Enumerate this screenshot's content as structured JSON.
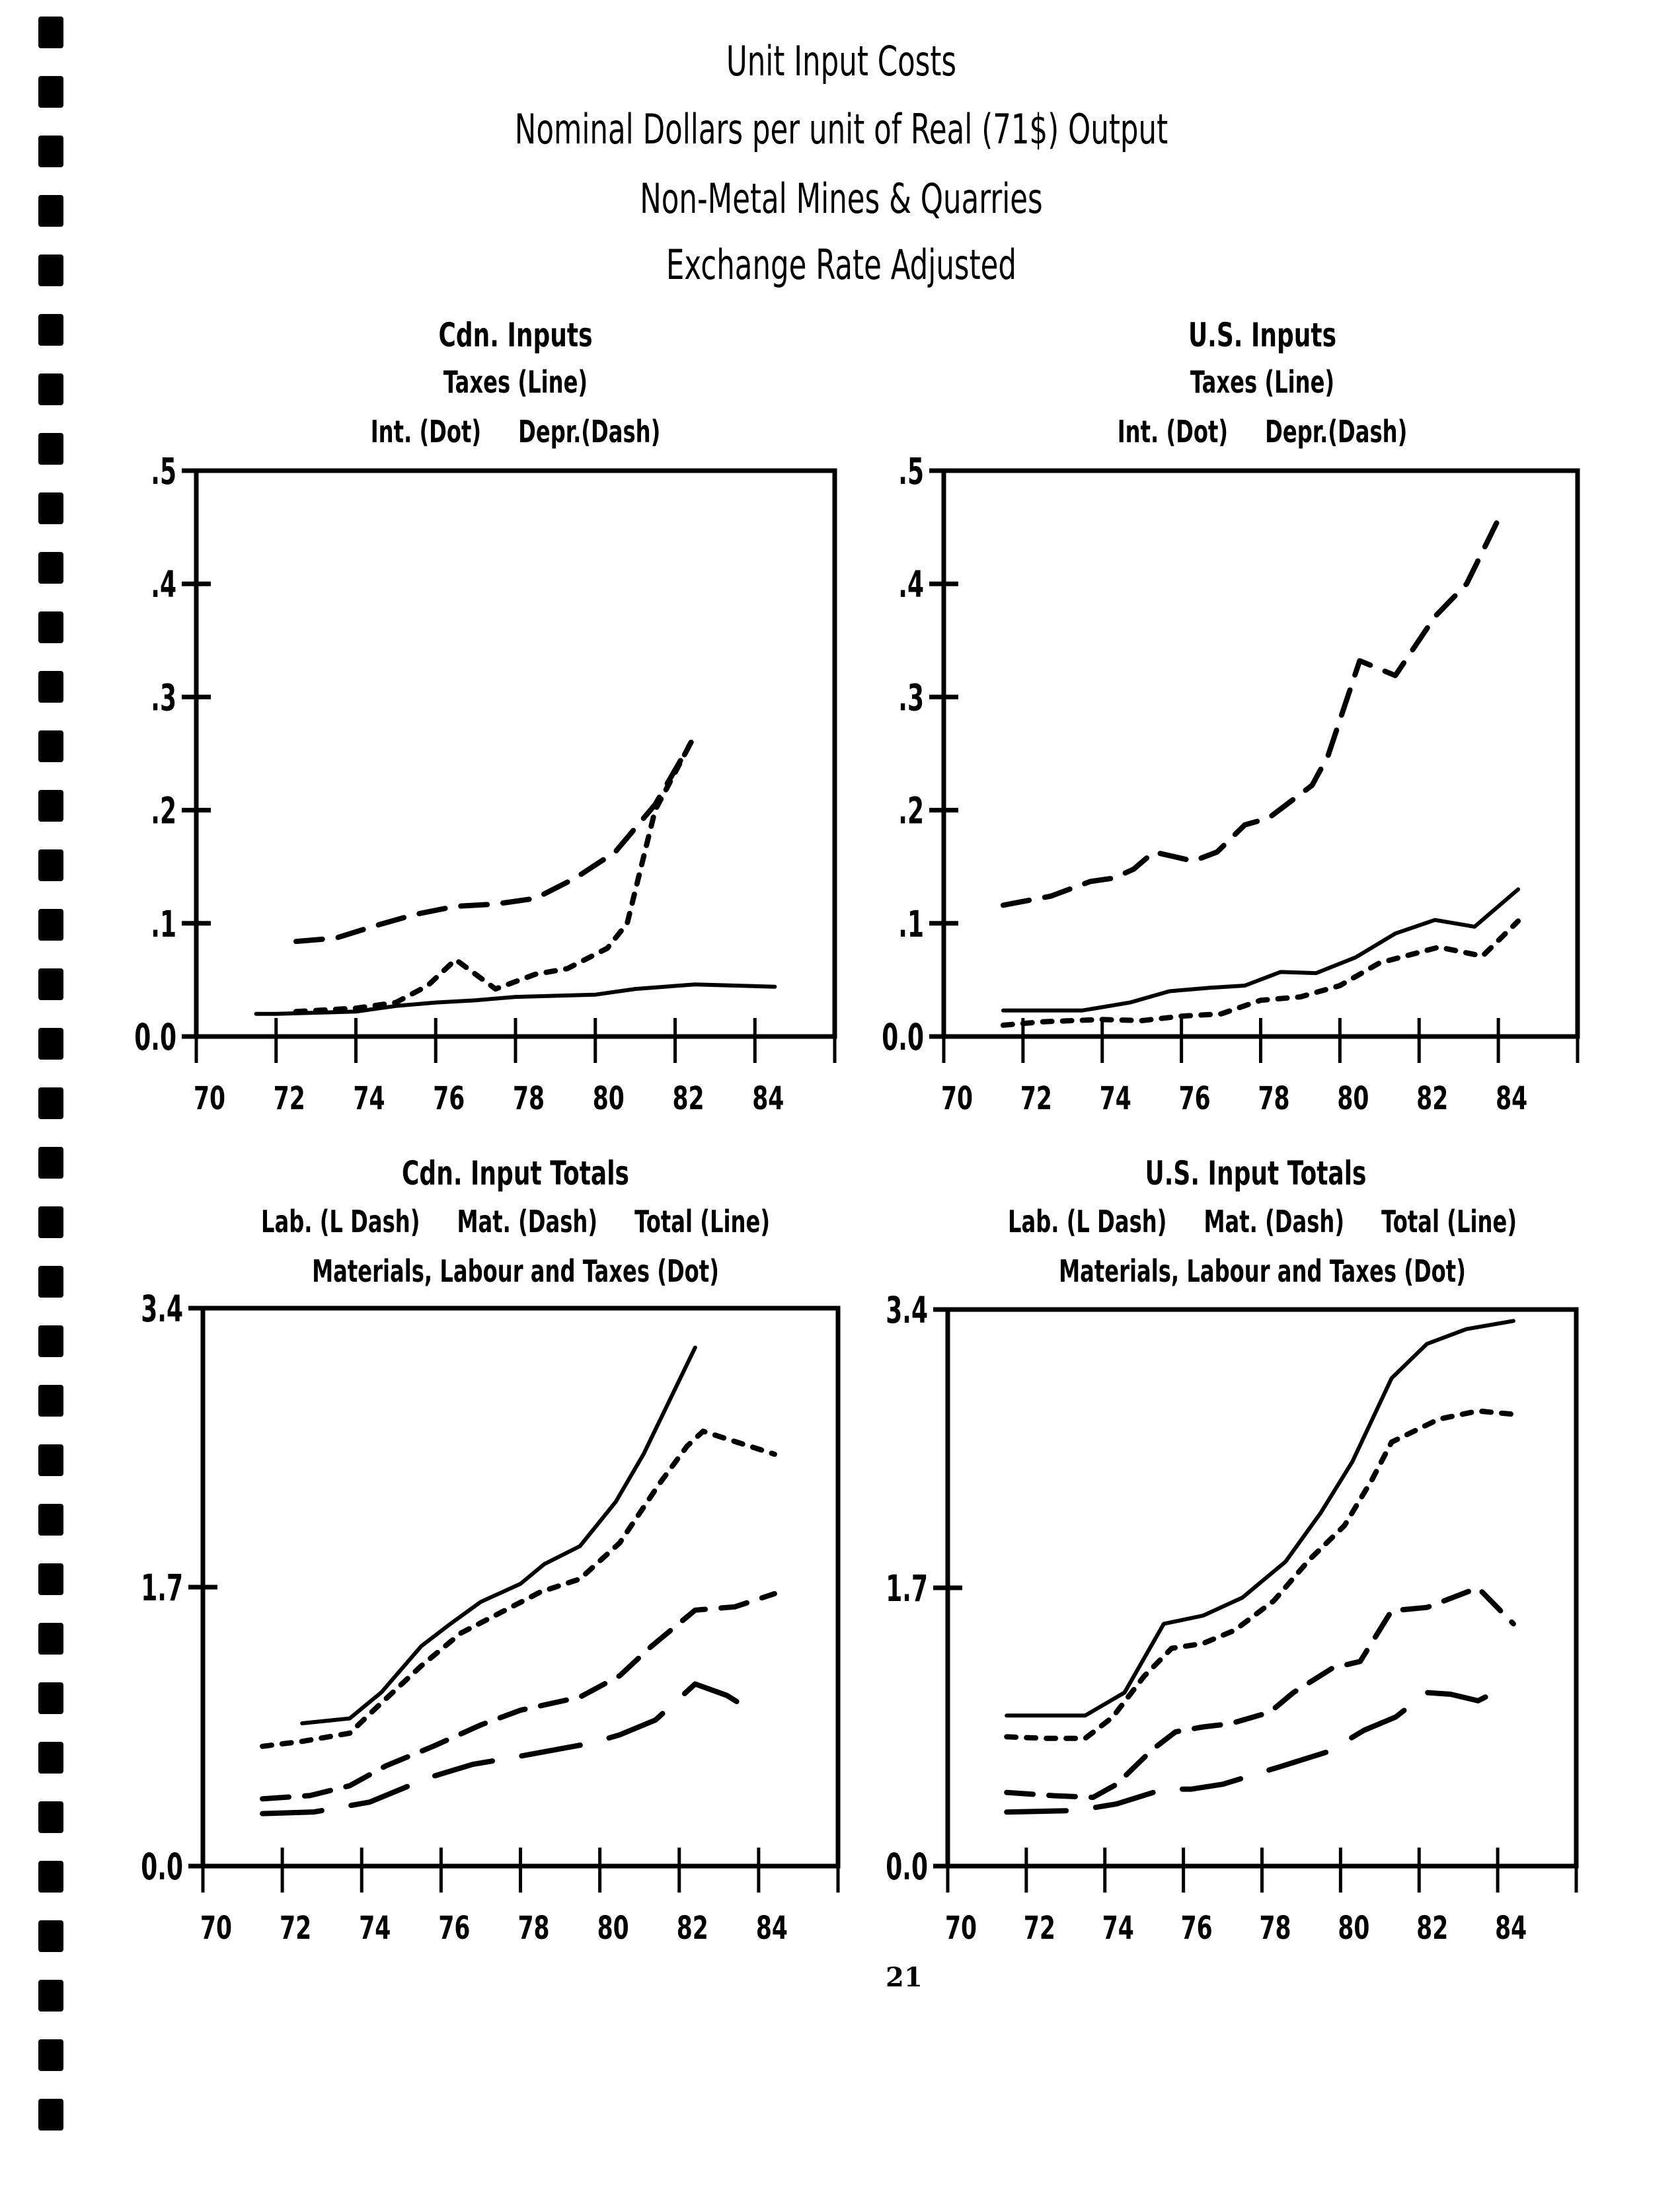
{
  "page": {
    "title_lines": [
      "Unit Input Costs",
      "Nominal Dollars per unit of Real (71$) Output",
      "Non-Metal Mines & Quarries",
      "Exchange Rate Adjusted"
    ],
    "page_number": "21"
  },
  "chart_data": [
    {
      "id": "cdn-inputs",
      "type": "line",
      "title": "Cdn. Inputs",
      "legend_lines": [
        "Taxes (Line)",
        "Int. (Dot)     Depr.(Dash)"
      ],
      "xlabel": "",
      "ylabel": "",
      "xlim": [
        70,
        86
      ],
      "ylim": [
        0,
        0.5
      ],
      "x_ticks": [
        70,
        72,
        74,
        76,
        78,
        80,
        82,
        84
      ],
      "y_ticks": [
        0,
        0.1,
        0.2,
        0.3,
        0.4,
        0.5
      ],
      "y_tick_labels": [
        "0.0",
        ".1",
        ".2",
        ".3",
        ".4",
        ".5"
      ],
      "series": [
        {
          "name": "Taxes",
          "style": "solid",
          "x": [
            71.5,
            72,
            74,
            75,
            76,
            77,
            78,
            80,
            81,
            82.5,
            84.5
          ],
          "y": [
            0.02,
            0.02,
            0.022,
            0.027,
            0.03,
            0.032,
            0.035,
            0.037,
            0.042,
            0.046,
            0.044
          ]
        },
        {
          "name": "Int.",
          "style": "dot",
          "x": [
            72.5,
            74,
            75,
            75.8,
            76.5,
            77.5,
            78.5,
            79.3,
            80.3,
            80.8,
            81.5,
            82.4
          ],
          "y": [
            0.022,
            0.025,
            0.03,
            0.045,
            0.068,
            0.042,
            0.055,
            0.06,
            0.078,
            0.1,
            0.2,
            0.26
          ]
        },
        {
          "name": "Depr.",
          "style": "dash",
          "x": [
            72.5,
            73.5,
            74.5,
            75.5,
            76.5,
            77.5,
            78.5,
            79.5,
            80.5,
            81.5,
            82.4
          ],
          "y": [
            0.084,
            0.087,
            0.098,
            0.108,
            0.115,
            0.117,
            0.122,
            0.14,
            0.163,
            0.205,
            0.26
          ]
        }
      ]
    },
    {
      "id": "us-inputs",
      "type": "line",
      "title": "U.S. Inputs",
      "legend_lines": [
        "Taxes (Line)",
        "Int. (Dot)     Depr.(Dash)"
      ],
      "xlabel": "",
      "ylabel": "",
      "xlim": [
        70,
        86
      ],
      "ylim": [
        0,
        0.5
      ],
      "x_ticks": [
        70,
        72,
        74,
        76,
        78,
        80,
        82,
        84
      ],
      "y_ticks": [
        0,
        0.1,
        0.2,
        0.3,
        0.4,
        0.5
      ],
      "y_tick_labels": [
        "0.0",
        ".1",
        ".2",
        ".3",
        ".4",
        ".5"
      ],
      "series": [
        {
          "name": "Taxes",
          "style": "solid",
          "x": [
            71.5,
            73.5,
            74.7,
            75.7,
            76.7,
            77.6,
            78.5,
            79.4,
            80.4,
            81.4,
            82.4,
            83.4,
            84.5
          ],
          "y": [
            0.023,
            0.023,
            0.03,
            0.04,
            0.043,
            0.045,
            0.057,
            0.056,
            0.07,
            0.091,
            0.103,
            0.097,
            0.13
          ]
        },
        {
          "name": "Int.",
          "style": "dot",
          "x": [
            71.5,
            72.5,
            74,
            75,
            76,
            77,
            78,
            79,
            80,
            81,
            82.5,
            83.6,
            84.5
          ],
          "y": [
            0.01,
            0.013,
            0.015,
            0.014,
            0.018,
            0.02,
            0.032,
            0.035,
            0.045,
            0.065,
            0.079,
            0.071,
            0.102
          ]
        },
        {
          "name": "Depr.",
          "style": "dash",
          "x": [
            71.5,
            72.7,
            73.7,
            74.3,
            74.8,
            75.3,
            76.3,
            76.9,
            77.6,
            78.2,
            79.3,
            79.7,
            80.5,
            81.4,
            82.4,
            83.2,
            84.1
          ],
          "y": [
            0.116,
            0.124,
            0.137,
            0.14,
            0.148,
            0.163,
            0.155,
            0.163,
            0.187,
            0.193,
            0.222,
            0.248,
            0.332,
            0.319,
            0.371,
            0.4,
            0.464
          ]
        }
      ]
    },
    {
      "id": "cdn-input-totals",
      "type": "line",
      "title": "Cdn. Input Totals",
      "legend_lines": [
        "Lab. (L Dash)     Mat. (Dash)     Total (Line)",
        "Materials, Labour and Taxes (Dot)"
      ],
      "xlabel": "",
      "ylabel": "",
      "xlim": [
        70,
        86
      ],
      "ylim": [
        0,
        3.4
      ],
      "x_ticks": [
        70,
        72,
        74,
        76,
        78,
        80,
        82,
        84
      ],
      "y_ticks": [
        0,
        1.7,
        3.4
      ],
      "y_tick_labels": [
        "0.0",
        "1.7",
        "3.4"
      ],
      "series": [
        {
          "name": "Total",
          "style": "solid",
          "x": [
            72.5,
            73.7,
            74.5,
            75.5,
            76.2,
            77,
            78,
            78.6,
            79.5,
            80.4,
            81.1,
            82.4
          ],
          "y": [
            0.87,
            0.9,
            1.06,
            1.34,
            1.47,
            1.61,
            1.72,
            1.84,
            1.95,
            2.22,
            2.51,
            3.16
          ]
        },
        {
          "name": "Materials, Labour and Taxes",
          "style": "dot",
          "x": [
            71.5,
            72.5,
            73.7,
            74.3,
            75.5,
            76.5,
            77.7,
            78.5,
            79.5,
            80.5,
            81.5,
            82.2,
            82.6,
            84.4
          ],
          "y": [
            0.73,
            0.76,
            0.81,
            0.95,
            1.22,
            1.42,
            1.57,
            1.67,
            1.75,
            1.97,
            2.33,
            2.56,
            2.65,
            2.51
          ]
        },
        {
          "name": "Mat.",
          "style": "dash",
          "x": [
            71.5,
            72.7,
            73.7,
            74.6,
            75.8,
            77,
            78,
            79.5,
            80.5,
            81.3,
            82.4,
            83.4,
            84.4
          ],
          "y": [
            0.41,
            0.43,
            0.49,
            0.61,
            0.73,
            0.86,
            0.95,
            1.03,
            1.16,
            1.34,
            1.56,
            1.58,
            1.66
          ]
        },
        {
          "name": "Lab.",
          "style": "longdash",
          "x": [
            71.5,
            72.8,
            74.2,
            75.7,
            76.8,
            78,
            79.8,
            80.5,
            81.4,
            82.4,
            83.2,
            83.8
          ],
          "y": [
            0.32,
            0.33,
            0.39,
            0.54,
            0.62,
            0.67,
            0.75,
            0.8,
            0.89,
            1.11,
            1.04,
            0.95
          ]
        }
      ]
    },
    {
      "id": "us-input-totals",
      "type": "line",
      "title": "U.S. Input Totals",
      "legend_lines": [
        "Lab. (L Dash)     Mat. (Dash)     Total (Line)",
        "Materials, Labour and Taxes (Dot)"
      ],
      "xlabel": "",
      "ylabel": "",
      "xlim": [
        70,
        86
      ],
      "ylim": [
        0,
        3.4
      ],
      "x_ticks": [
        70,
        72,
        74,
        76,
        78,
        80,
        82,
        84
      ],
      "y_ticks": [
        0,
        1.7,
        3.4
      ],
      "y_tick_labels": [
        "0.0",
        "1.7",
        "3.4"
      ],
      "series": [
        {
          "name": "Total",
          "style": "solid",
          "x": [
            71.5,
            73.5,
            74.5,
            75.5,
            76.5,
            77.5,
            78.6,
            79.5,
            80.3,
            81.3,
            82.2,
            83.2,
            84.4
          ],
          "y": [
            0.92,
            0.92,
            1.06,
            1.48,
            1.53,
            1.64,
            1.86,
            2.16,
            2.47,
            2.98,
            3.19,
            3.28,
            3.33
          ]
        },
        {
          "name": "Materials, Labour and Taxes",
          "style": "dot",
          "x": [
            71.5,
            72.5,
            73.5,
            74.2,
            75,
            75.7,
            76.5,
            77.3,
            78.3,
            79.2,
            80.1,
            80.8,
            81.3,
            82.5,
            83.5,
            84.4
          ],
          "y": [
            0.79,
            0.78,
            0.78,
            0.91,
            1.16,
            1.33,
            1.36,
            1.44,
            1.62,
            1.87,
            2.08,
            2.36,
            2.59,
            2.73,
            2.78,
            2.76
          ]
        },
        {
          "name": "Mat.",
          "style": "dash",
          "x": [
            71.5,
            72.7,
            73.7,
            74.3,
            75.2,
            75.8,
            76.5,
            77.2,
            78.2,
            78.8,
            79.8,
            80.5,
            81.3,
            82.2,
            83.5,
            84.4
          ],
          "y": [
            0.45,
            0.43,
            0.42,
            0.5,
            0.71,
            0.82,
            0.85,
            0.87,
            0.94,
            1.06,
            1.21,
            1.25,
            1.56,
            1.58,
            1.7,
            1.48
          ]
        },
        {
          "name": "Lab.",
          "style": "longdash",
          "x": [
            71.5,
            73.3,
            74.3,
            75.5,
            76.2,
            77,
            78.5,
            79.7,
            80.6,
            81.4,
            82.2,
            82.8,
            83.5,
            84
          ],
          "y": [
            0.33,
            0.34,
            0.38,
            0.47,
            0.47,
            0.5,
            0.61,
            0.7,
            0.83,
            0.91,
            1.06,
            1.05,
            1.01,
            1.07
          ]
        }
      ]
    }
  ]
}
